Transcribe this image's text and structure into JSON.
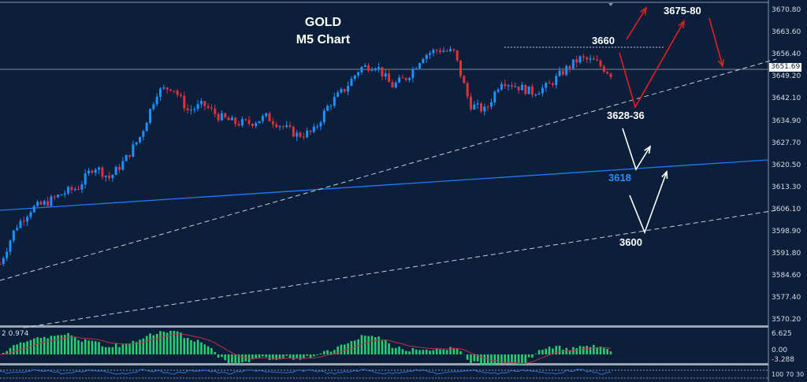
{
  "chart_data": {
    "type": "candlestick",
    "title": "GOLD",
    "subtitle": "M5 Chart",
    "symbol": "GOLD",
    "timeframe": "M5",
    "current_price": "3651.69",
    "ylim": [
      3568,
      3673
    ],
    "y_ticks": [
      "3670.80",
      "3663.60",
      "3656.40",
      "3649.20",
      "3642.10",
      "3634.90",
      "3627.70",
      "3620.50",
      "3613.30",
      "3606.10",
      "3598.90",
      "3591.80",
      "3584.60",
      "3577.40",
      "3570.20"
    ],
    "price_path_keypoints": [
      3588,
      3600,
      3606,
      3608,
      3611,
      3613,
      3620,
      3616,
      3622,
      3630,
      3644,
      3646,
      3638,
      3640,
      3636,
      3634,
      3634,
      3636,
      3633,
      3630,
      3631,
      3640,
      3645,
      3652,
      3653,
      3646,
      3649,
      3656,
      3658,
      3657,
      3640,
      3638,
      3648,
      3646,
      3644,
      3646,
      3651,
      3655,
      3654,
      3650
    ],
    "colors": {
      "bull": "#1e90ff",
      "bear": "#e0303a",
      "background": "#0b1f3a",
      "support_line": "#1e7bff",
      "arrow_up_target": "#e02020",
      "arrow_support": "#ffffff"
    },
    "annotations": {
      "resistance": "3660",
      "target": "3675-80",
      "pullback_zone": "3628-36",
      "support_blue": "3618",
      "support_low": "3600"
    },
    "indicator": {
      "label": "2 0.974",
      "ticks": [
        "6.625",
        "0.00",
        "-3.288"
      ],
      "histogram_color": "#2ecc71",
      "signal_color": "#c0304a"
    },
    "oscillator": {
      "ticks": [
        "100",
        "70",
        "30"
      ]
    }
  }
}
